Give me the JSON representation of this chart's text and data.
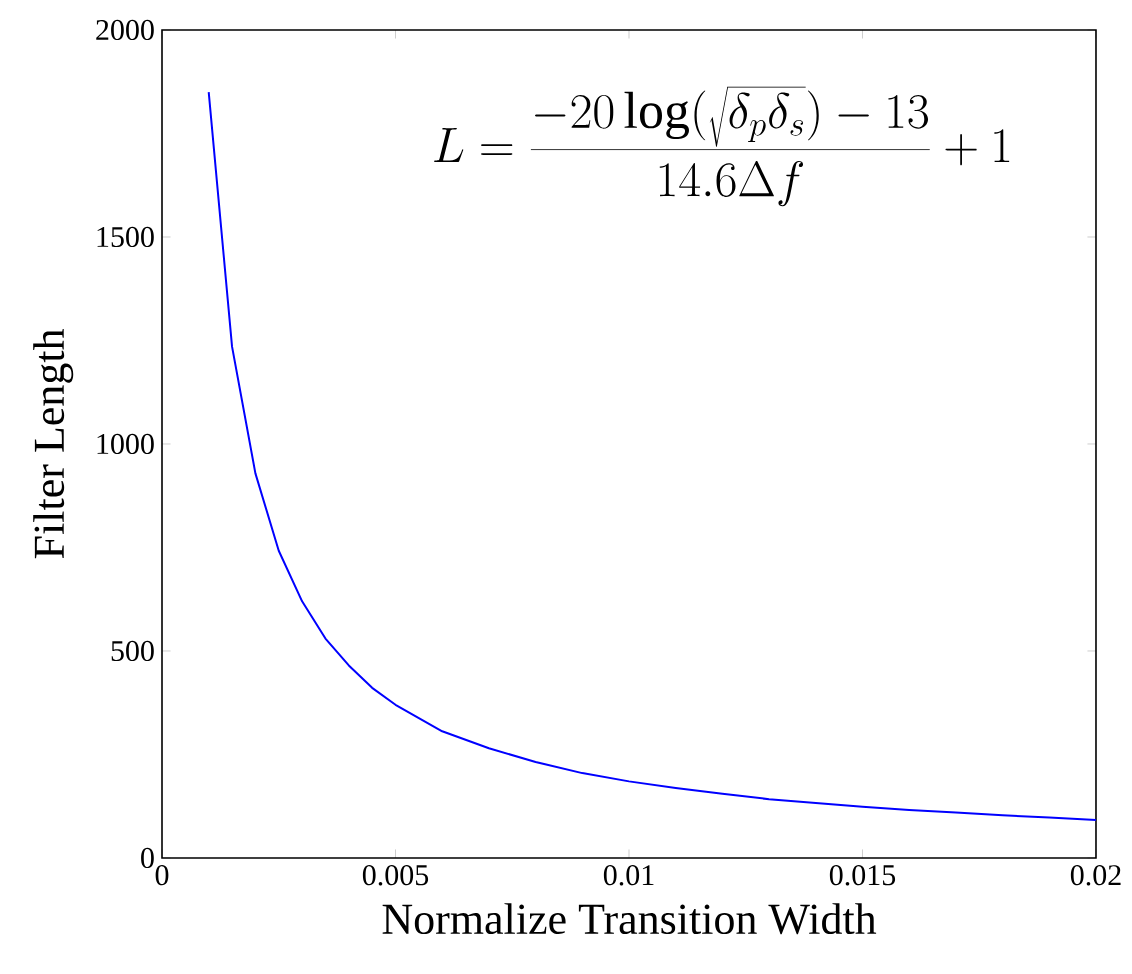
{
  "chart_data": {
    "type": "line",
    "xlabel": "Normalize Transition Width",
    "ylabel": "Filter Length",
    "x": [
      0.001,
      0.0015,
      0.002,
      0.0025,
      0.003,
      0.0035,
      0.004,
      0.0045,
      0.005,
      0.006,
      0.007,
      0.008,
      0.009,
      0.01,
      0.011,
      0.012,
      0.013,
      0.014,
      0.015,
      0.016,
      0.017,
      0.018,
      0.019,
      0.02
    ],
    "series": [
      {
        "color": "#0000ff",
        "values": [
          1850,
          1235,
          929,
          742,
          620,
          530,
          465,
          411,
          370,
          306,
          265,
          232,
          205,
          185,
          169,
          155,
          142,
          133,
          124,
          116,
          110,
          103,
          98,
          92
        ]
      }
    ],
    "xlim": [
      0,
      0.02
    ],
    "ylim": [
      0,
      2000
    ],
    "xticks": [
      0,
      0.005,
      0.01,
      0.015,
      0.02
    ],
    "yticks": [
      0,
      500,
      1000,
      1500,
      2000
    ],
    "annotations": [
      "L=\\frac{-20\\log(\\sqrt{\\delta_p\\delta_s})-13}{14.6\\Delta f}+1"
    ],
    "grid": false
  }
}
